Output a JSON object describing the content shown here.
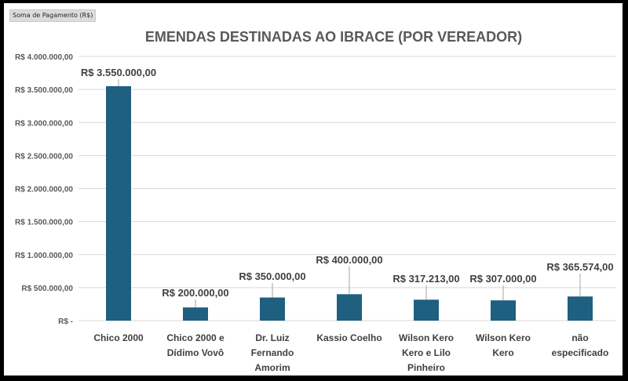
{
  "field_button": "Soma de Pagamento (R$)",
  "chart_data": {
    "type": "bar",
    "title": "EMENDAS DESTINADAS AO IBRACE (POR VEREADOR)",
    "xlabel": "",
    "ylabel": "",
    "categories": [
      [
        "Chico 2000"
      ],
      [
        "Chico 2000 e",
        "Dídimo Vovô"
      ],
      [
        "Dr. Luiz",
        "Fernando",
        "Amorim"
      ],
      [
        "Kassio Coelho"
      ],
      [
        "Wilson Kero",
        "Kero e Lilo",
        "Pinheiro"
      ],
      [
        "Wilson Kero",
        "Kero"
      ],
      [
        "não",
        "especificado"
      ]
    ],
    "values": [
      3550000,
      200000,
      350000,
      400000,
      317213,
      307000,
      365574
    ],
    "data_labels": [
      "R$ 3.550.000,00",
      "R$ 200.000,00",
      "R$ 350.000,00",
      "R$ 400.000,00",
      "R$ 317.213,00",
      "R$ 307.000,00",
      "R$ 365.574,00"
    ],
    "ylim": [
      0,
      4000000
    ],
    "yticks": [
      0,
      500000,
      1000000,
      1500000,
      2000000,
      2500000,
      3000000,
      3500000,
      4000000
    ],
    "ytick_labels": [
      "R$ -",
      "R$ 500.000,00",
      "R$ 1.000.000,00",
      "R$ 1.500.000,00",
      "R$ 2.000.000,00",
      "R$ 2.500.000,00",
      "R$ 3.000.000,00",
      "R$ 3.500.000,00",
      "R$ 4.000.000,00"
    ],
    "grid": true,
    "legend": "none",
    "bar_color": "#1f5f80",
    "grid_color": "#d9d9d9"
  }
}
